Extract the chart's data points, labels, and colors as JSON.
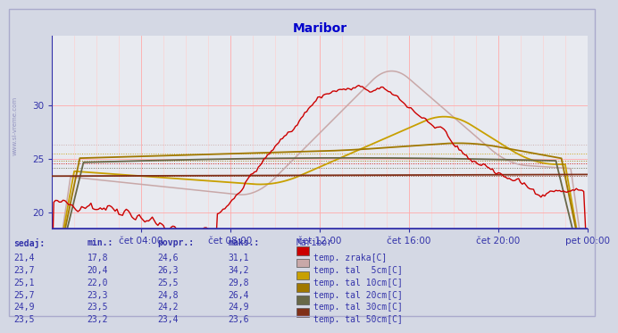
{
  "title": "Maribor",
  "title_color": "#0000cc",
  "bg_color": "#d4d8e4",
  "plot_bg_color": "#e8eaf0",
  "watermark": "www.si-vreme.com",
  "x_labels": [
    "čet 04:00",
    "čet 08:00",
    "čet 12:00",
    "čet 16:00",
    "čet 20:00",
    "pet 00:00"
  ],
  "ylim": [
    18.5,
    36.5
  ],
  "yticks": [
    20,
    25,
    30
  ],
  "line_colors": [
    "#cc0000",
    "#c8a8a8",
    "#c8a000",
    "#a07800",
    "#686848",
    "#803018"
  ],
  "avg_values": [
    24.6,
    26.3,
    25.5,
    24.8,
    24.2,
    23.4
  ],
  "table_headers": [
    "sedaj:",
    "min.:",
    "povpr.:",
    "maks.:",
    "Maribor"
  ],
  "table_rows": [
    [
      "21,4",
      "17,8",
      "24,6",
      "31,1",
      "temp. zraka[C]",
      "#cc0000"
    ],
    [
      "23,7",
      "20,4",
      "26,3",
      "34,2",
      "temp. tal  5cm[C]",
      "#c8a8a8"
    ],
    [
      "25,1",
      "22,0",
      "25,5",
      "29,8",
      "temp. tal 10cm[C]",
      "#c8a000"
    ],
    [
      "25,7",
      "23,3",
      "24,8",
      "26,4",
      "temp. tal 20cm[C]",
      "#a07800"
    ],
    [
      "24,9",
      "23,5",
      "24,2",
      "24,9",
      "temp. tal 30cm[C]",
      "#686848"
    ],
    [
      "23,5",
      "23,2",
      "23,4",
      "23,6",
      "temp. tal 50cm[C]",
      "#803018"
    ]
  ]
}
